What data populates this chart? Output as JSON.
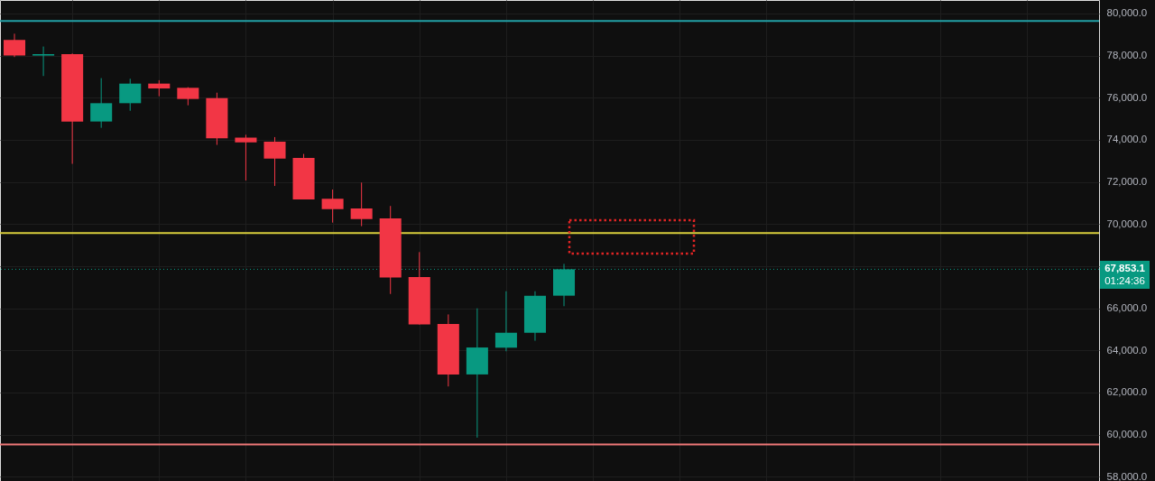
{
  "chart_data": {
    "type": "candlestick",
    "categories": [
      null,
      null,
      null,
      null,
      null,
      null,
      null,
      null,
      null,
      null,
      null,
      null,
      null,
      null,
      null,
      null,
      null,
      null,
      null,
      null,
      null,
      null,
      null,
      null,
      null,
      null,
      null,
      null,
      null,
      null,
      null,
      null,
      null,
      null,
      null,
      null,
      null,
      null
    ],
    "ohlc": [
      [
        78740,
        79040,
        77930,
        78000
      ],
      [
        78000,
        78430,
        77030,
        78070
      ],
      [
        78070,
        78100,
        72860,
        74870
      ],
      [
        74870,
        76930,
        74570,
        75740
      ],
      [
        75740,
        76900,
        75380,
        76670
      ],
      [
        76670,
        76830,
        76070,
        76440
      ],
      [
        76470,
        76500,
        75640,
        75940
      ],
      [
        75980,
        76240,
        73760,
        74070
      ],
      [
        74100,
        74240,
        72070,
        73880
      ],
      [
        73910,
        74130,
        71810,
        73110
      ],
      [
        73140,
        73330,
        71170,
        71170
      ],
      [
        71200,
        71640,
        70070,
        70710
      ],
      [
        70740,
        71970,
        69900,
        70240
      ],
      [
        70270,
        70860,
        66680,
        67460
      ],
      [
        67480,
        68670,
        65230,
        65230
      ],
      [
        65260,
        65710,
        62290,
        62860
      ],
      [
        62860,
        66000,
        59860,
        64140
      ],
      [
        64130,
        66810,
        63960,
        64840
      ],
      [
        64840,
        66810,
        64460,
        66600
      ],
      [
        66600,
        68110,
        66100,
        67853.1
      ],
      null,
      null,
      null,
      null,
      null,
      null,
      null,
      null,
      null,
      null,
      null,
      null,
      null,
      null,
      null,
      null,
      null,
      null
    ],
    "colors": [
      "#f23645",
      "#089981",
      "#f23645",
      "#089981",
      "#089981",
      "#f23645",
      "#f23645",
      "#f23645",
      "#f23645",
      "#f23645",
      "#f23645",
      "#f23645",
      "#f23645",
      "#f23645",
      "#f23645",
      "#f23645",
      "#089981",
      "#089981",
      "#089981",
      "#089981",
      null,
      null,
      null,
      null,
      null,
      null,
      null,
      null,
      null,
      null,
      null,
      null,
      null,
      null,
      null,
      null,
      null,
      null
    ],
    "ylim": [
      57800,
      80640
    ],
    "yticks": [
      {
        "value": 58000,
        "label": "58,000.0"
      },
      {
        "value": 60000,
        "label": "60,000.0"
      },
      {
        "value": 62000,
        "label": "62,000.0"
      },
      {
        "value": 64000,
        "label": "64,000.0"
      },
      {
        "value": 66000,
        "label": "66,000.0"
      },
      {
        "value": 68000,
        "label": null
      },
      {
        "value": 70000,
        "label": "70,000.0"
      },
      {
        "value": 72000,
        "label": "72,000.0"
      },
      {
        "value": 74000,
        "label": "74,000.0"
      },
      {
        "value": 76000,
        "label": "76,000.0"
      },
      {
        "value": 78000,
        "label": "78,000.0"
      },
      {
        "value": 80000,
        "label": "80,000.0"
      }
    ],
    "grid": true,
    "tick_labels": "y",
    "ref_lines": [
      {
        "axis": "y",
        "value": 79640,
        "color": "#22a0a6"
      },
      {
        "axis": "y",
        "value": 69570,
        "color": "#d8cd3c"
      },
      {
        "axis": "y",
        "value": 59540,
        "color": "#ee7777"
      },
      {
        "axis": "y",
        "value": 67853.1,
        "label": "67,853.1",
        "color": "#089981",
        "line_style": "dotted"
      }
    ],
    "annotations": [
      "01:24:36"
    ]
  }
}
